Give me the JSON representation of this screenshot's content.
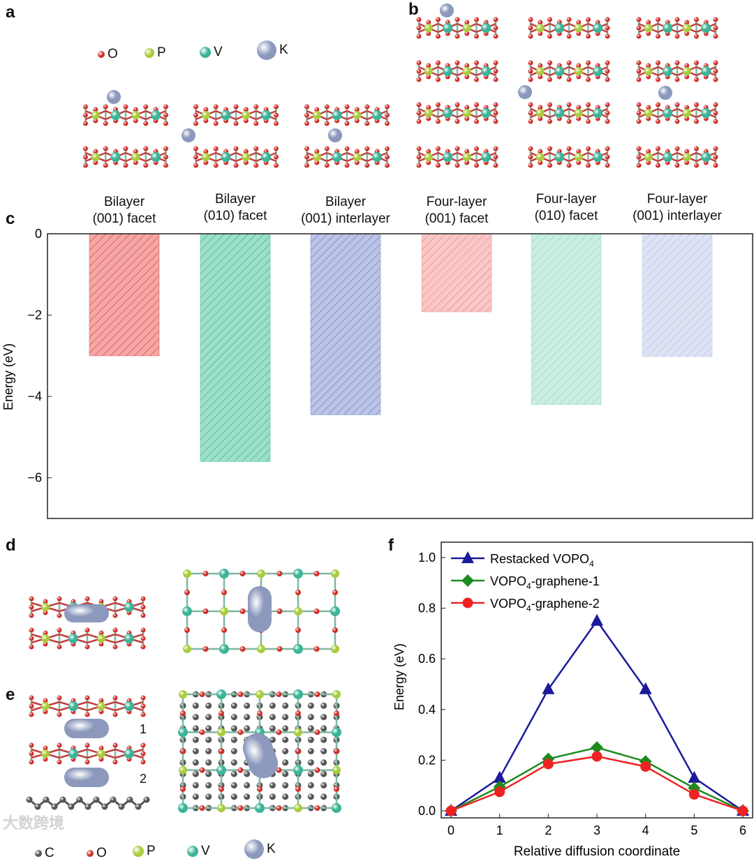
{
  "panels": {
    "a": "a",
    "b": "b",
    "c": "c",
    "d": "d",
    "e": "e",
    "f": "f"
  },
  "legend_top": [
    {
      "label": "O",
      "color": "#d0302a",
      "size": 10
    },
    {
      "label": "P",
      "color": "#a8cc3c",
      "size": 14
    },
    {
      "label": "V",
      "color": "#3bb497",
      "size": 16
    },
    {
      "label": "K",
      "color": "#8c99bd",
      "size": 28
    }
  ],
  "legend_bottom": [
    {
      "label": "C",
      "color": "#555555",
      "size": 10
    },
    {
      "label": "O",
      "color": "#d0302a",
      "size": 10
    },
    {
      "label": "P",
      "color": "#a8cc3c",
      "size": 16
    },
    {
      "label": "V",
      "color": "#3bb497",
      "size": 16
    },
    {
      "label": "K",
      "color": "#8c99bd",
      "size": 28
    }
  ],
  "panel_e_labels": [
    "1",
    "2"
  ],
  "watermark": "大数跨境",
  "chart_data": [
    {
      "type": "bar",
      "panel": "c",
      "categories": [
        [
          "Bilayer",
          "(001) facet"
        ],
        [
          "Bilayer",
          "(010) facet"
        ],
        [
          "Bilayer",
          "(001) interlayer"
        ],
        [
          "Four-layer",
          "(001) facet"
        ],
        [
          "Four-layer",
          "(010) facet"
        ],
        [
          "Four-layer",
          "(001) interlayer"
        ]
      ],
      "values": [
        -3.0,
        -5.6,
        -4.45,
        -1.92,
        -4.2,
        -3.02
      ],
      "colors": [
        "#e8605e",
        "#4fc49c",
        "#8594cf",
        "#f19a98",
        "#9fe0c8",
        "#c3cbea"
      ],
      "ylabel": "Energy (eV)",
      "ylim": [
        -7,
        0
      ],
      "yticks": [
        0,
        -2,
        -4,
        -6
      ],
      "ytick_labels": [
        "0",
        "−2",
        "−4",
        "−6"
      ],
      "hatch": true
    },
    {
      "type": "line",
      "panel": "f",
      "x": [
        0,
        1,
        2,
        3,
        4,
        5,
        6
      ],
      "xlabel": "Relative diffusion coordinate",
      "ylabel": "Energy (eV)",
      "xlim": [
        -0.2,
        6.2
      ],
      "ylim": [
        -0.03,
        1.05
      ],
      "yticks": [
        0.0,
        0.2,
        0.4,
        0.6,
        0.8,
        1.0
      ],
      "ytick_labels": [
        "0.0",
        "0.2",
        "0.4",
        "0.6",
        "0.8",
        "1.0"
      ],
      "xticks": [
        "0",
        "1",
        "2",
        "3",
        "4",
        "5",
        "6"
      ],
      "legend_position": "top-left",
      "series": [
        {
          "name": "Restacked VOPO",
          "sub": "4",
          "suffix": "",
          "pre": "",
          "color": "#1a1a9a",
          "marker": "triangle",
          "values": [
            0,
            0.13,
            0.48,
            0.75,
            0.48,
            0.13,
            0
          ]
        },
        {
          "name": "VOPO",
          "sub": "4",
          "suffix": "-graphene-1",
          "color": "#1f8a1f",
          "marker": "diamond",
          "values": [
            0,
            0.095,
            0.205,
            0.25,
            0.195,
            0.09,
            0
          ]
        },
        {
          "name": "VOPO",
          "sub": "4",
          "suffix": "-graphene-2",
          "color": "#ee2222",
          "marker": "circle",
          "values": [
            0,
            0.075,
            0.185,
            0.215,
            0.175,
            0.065,
            0
          ]
        }
      ]
    }
  ]
}
